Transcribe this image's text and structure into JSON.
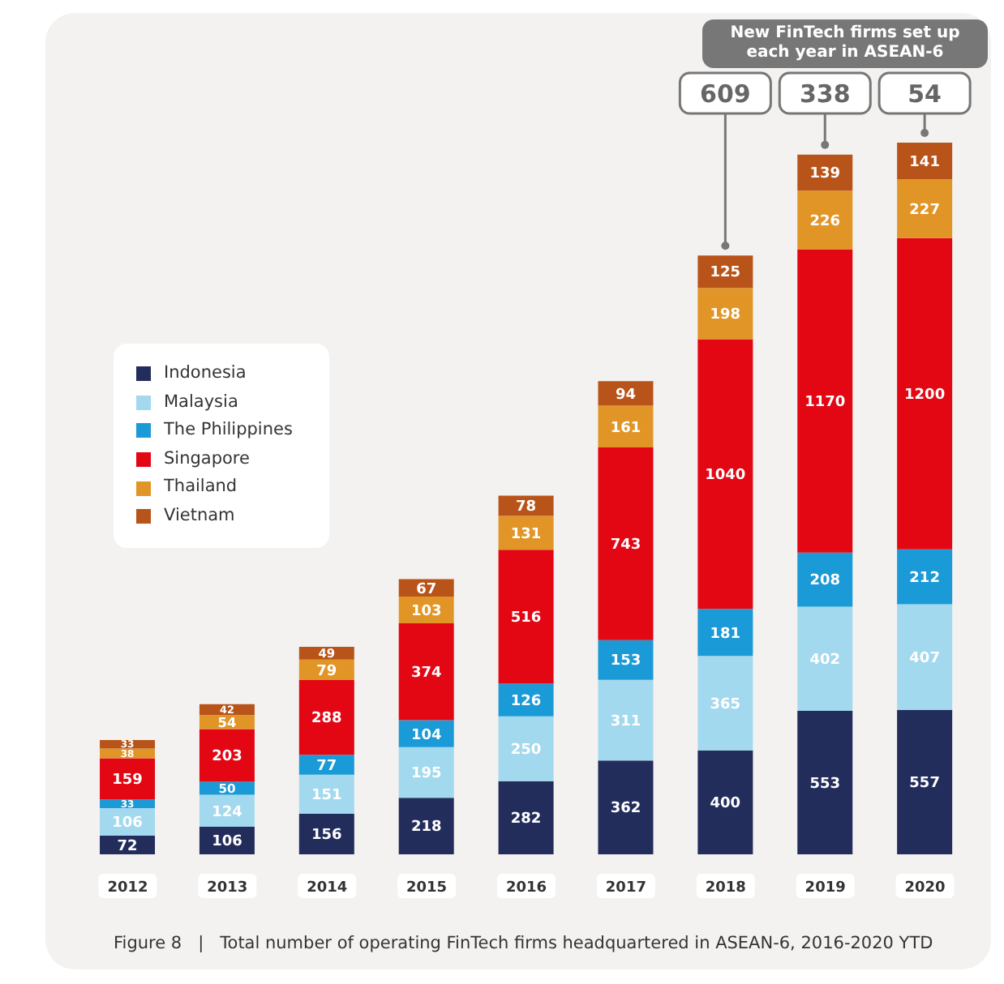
{
  "chart_data": {
    "type": "bar",
    "stacked": true,
    "data_labels": true,
    "legend": "top left",
    "categories": [
      "2012",
      "2013",
      "2014",
      "2015",
      "2016",
      "2017",
      "2018",
      "2019",
      "2020"
    ],
    "series": [
      {
        "name": "Indonesia",
        "color": "#232d5c",
        "values": [
          72,
          106,
          156,
          218,
          282,
          362,
          400,
          553,
          557
        ]
      },
      {
        "name": "Malaysia",
        "color": "#a3d9ee",
        "values": [
          106,
          124,
          151,
          195,
          250,
          311,
          365,
          402,
          407
        ]
      },
      {
        "name": "The Philippines",
        "color": "#1a9ad6",
        "values": [
          33,
          50,
          77,
          104,
          126,
          153,
          181,
          208,
          212
        ]
      },
      {
        "name": "Singapore",
        "color": "#e30613",
        "values": [
          159,
          203,
          288,
          374,
          516,
          743,
          1040,
          1170,
          1200
        ]
      },
      {
        "name": "Thailand",
        "color": "#e29527",
        "values": [
          38,
          54,
          79,
          103,
          131,
          161,
          198,
          226,
          227
        ]
      },
      {
        "name": "Vietnam",
        "color": "#b85419",
        "values": [
          33,
          42,
          49,
          67,
          78,
          94,
          125,
          139,
          141
        ]
      }
    ],
    "annotations": [
      "New FinTech firms set up each year in ASEAN-6",
      {
        "text": "609",
        "x": "2018"
      },
      {
        "text": "338",
        "x": "2019"
      },
      {
        "text": "54",
        "x": "2020"
      },
      "Figure 8   |   Total number of operating FinTech firms headquartered in ASEAN-6, 2016-2020 YTD"
    ]
  }
}
